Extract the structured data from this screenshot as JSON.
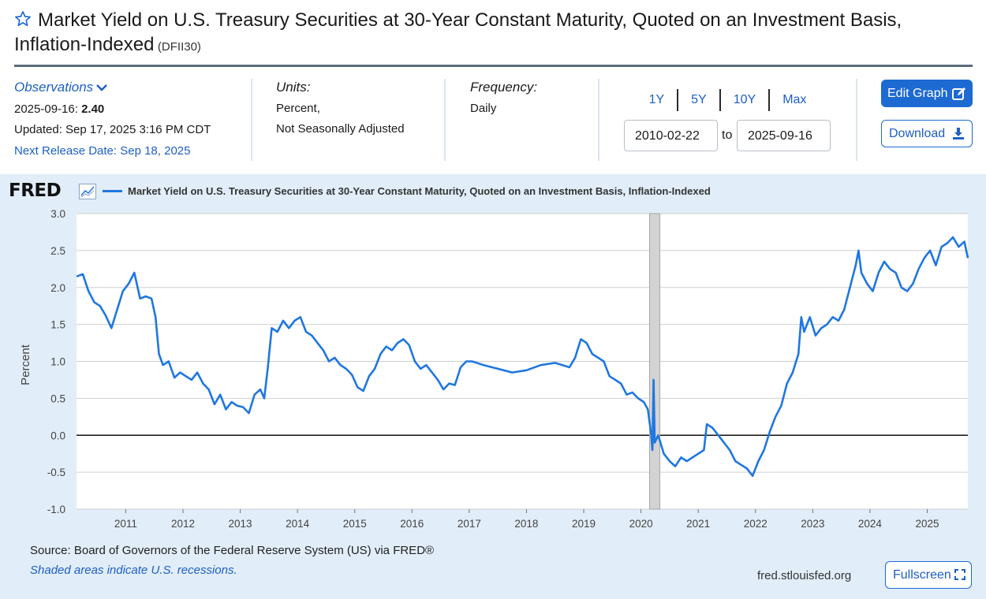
{
  "header": {
    "title": "Market Yield on U.S. Treasury Securities at 30-Year Constant Maturity, Quoted on an Investment Basis, Inflation-Indexed",
    "series_id": "(DFII30)"
  },
  "observations": {
    "label": "Observations",
    "date": "2025-09-16:",
    "value": "2.40",
    "updated": "Updated: Sep 17, 2025 3:16 PM CDT",
    "next_release": "Next Release Date: Sep 18, 2025"
  },
  "units": {
    "label": "Units:",
    "line1": "Percent,",
    "line2": "Not Seasonally Adjusted"
  },
  "frequency": {
    "label": "Frequency:",
    "value": "Daily"
  },
  "range": {
    "links": [
      "1Y",
      "5Y",
      "10Y",
      "Max"
    ],
    "start": "2010-02-22",
    "to": "to",
    "end": "2025-09-16"
  },
  "buttons": {
    "edit_graph": "Edit Graph",
    "download": "Download",
    "fullscreen": "Fullscreen"
  },
  "chart_panel": {
    "logo": "FRED",
    "source": "Source: Board of Governors of the Federal Reserve System (US) via FRED®",
    "shaded_note": "Shaded areas indicate U.S. recessions.",
    "url": "fred.stlouisfed.org"
  },
  "colors": {
    "series": "#1f77e0",
    "accent": "#1d6ad2",
    "panel": "#e1edf8",
    "recession": "#d3d3d3"
  },
  "icons": {
    "star": "star-icon",
    "chevron": "chevron-down-icon",
    "edit": "edit-icon",
    "download": "download-icon",
    "fullscreen": "fullscreen-icon"
  },
  "chart_data": {
    "type": "line",
    "title": "",
    "ylabel": "Percent",
    "xlabel": "",
    "ylim": [
      -1.0,
      3.0
    ],
    "xlim": [
      2010.14,
      2025.71
    ],
    "yticks": [
      "3.0",
      "2.5",
      "2.0",
      "1.5",
      "1.0",
      "0.5",
      "0.0",
      "-0.5",
      "-1.0"
    ],
    "xticks": [
      "2011",
      "2012",
      "2013",
      "2014",
      "2015",
      "2016",
      "2017",
      "2018",
      "2019",
      "2020",
      "2021",
      "2022",
      "2023",
      "2024",
      "2025"
    ],
    "grid": true,
    "recessions": [
      [
        2020.15,
        2020.33
      ]
    ],
    "series": [
      {
        "name": "Market Yield on U.S. Treasury Securities at 30-Year Constant Maturity, Quoted on an Investment Basis, Inflation-Indexed",
        "x": [
          2010.14,
          2010.25,
          2010.35,
          2010.45,
          2010.55,
          2010.65,
          2010.75,
          2010.85,
          2010.95,
          2011.05,
          2011.15,
          2011.25,
          2011.35,
          2011.45,
          2011.52,
          2011.58,
          2011.65,
          2011.75,
          2011.85,
          2011.95,
          2012.05,
          2012.15,
          2012.25,
          2012.35,
          2012.45,
          2012.55,
          2012.65,
          2012.75,
          2012.85,
          2012.95,
          2013.05,
          2013.15,
          2013.25,
          2013.35,
          2013.42,
          2013.48,
          2013.55,
          2013.65,
          2013.75,
          2013.85,
          2013.95,
          2014.05,
          2014.15,
          2014.25,
          2014.35,
          2014.45,
          2014.55,
          2014.65,
          2014.75,
          2014.85,
          2014.95,
          2015.05,
          2015.15,
          2015.25,
          2015.35,
          2015.45,
          2015.55,
          2015.65,
          2015.75,
          2015.85,
          2015.95,
          2016.05,
          2016.15,
          2016.25,
          2016.35,
          2016.45,
          2016.55,
          2016.65,
          2016.75,
          2016.85,
          2016.95,
          2017.05,
          2017.25,
          2017.5,
          2017.75,
          2018.0,
          2018.25,
          2018.5,
          2018.75,
          2018.85,
          2018.95,
          2019.05,
          2019.15,
          2019.25,
          2019.35,
          2019.45,
          2019.55,
          2019.65,
          2019.75,
          2019.85,
          2019.95,
          2020.05,
          2020.12,
          2020.18,
          2020.2,
          2020.22,
          2020.24,
          2020.3,
          2020.4,
          2020.5,
          2020.6,
          2020.7,
          2020.8,
          2020.9,
          2021.0,
          2021.1,
          2021.15,
          2021.25,
          2021.35,
          2021.45,
          2021.55,
          2021.65,
          2021.75,
          2021.85,
          2021.95,
          2022.05,
          2022.15,
          2022.25,
          2022.35,
          2022.45,
          2022.55,
          2022.65,
          2022.75,
          2022.8,
          2022.85,
          2022.95,
          2023.05,
          2023.15,
          2023.25,
          2023.35,
          2023.45,
          2023.55,
          2023.65,
          2023.75,
          2023.8,
          2023.85,
          2023.95,
          2024.05,
          2024.15,
          2024.25,
          2024.35,
          2024.45,
          2024.55,
          2024.65,
          2024.75,
          2024.85,
          2024.95,
          2025.05,
          2025.15,
          2025.25,
          2025.35,
          2025.45,
          2025.55,
          2025.65,
          2025.71
        ],
        "values": [
          2.15,
          2.18,
          1.95,
          1.8,
          1.75,
          1.62,
          1.45,
          1.7,
          1.95,
          2.05,
          2.2,
          1.85,
          1.88,
          1.85,
          1.6,
          1.1,
          0.95,
          1.0,
          0.78,
          0.85,
          0.8,
          0.75,
          0.85,
          0.7,
          0.62,
          0.42,
          0.55,
          0.35,
          0.45,
          0.4,
          0.38,
          0.3,
          0.55,
          0.62,
          0.5,
          0.9,
          1.45,
          1.4,
          1.55,
          1.45,
          1.55,
          1.6,
          1.4,
          1.35,
          1.25,
          1.15,
          1.0,
          1.05,
          0.95,
          0.9,
          0.82,
          0.65,
          0.6,
          0.8,
          0.9,
          1.1,
          1.2,
          1.15,
          1.25,
          1.3,
          1.22,
          1.0,
          0.9,
          0.95,
          0.85,
          0.75,
          0.62,
          0.7,
          0.68,
          0.92,
          1.0,
          1.0,
          0.95,
          0.9,
          0.85,
          0.88,
          0.95,
          0.98,
          0.92,
          1.05,
          1.3,
          1.25,
          1.1,
          1.05,
          1.0,
          0.8,
          0.75,
          0.7,
          0.55,
          0.58,
          0.5,
          0.45,
          0.35,
          0.0,
          -0.2,
          0.75,
          -0.1,
          0.0,
          -0.25,
          -0.35,
          -0.42,
          -0.3,
          -0.35,
          -0.3,
          -0.25,
          -0.2,
          0.15,
          0.1,
          0.0,
          -0.1,
          -0.2,
          -0.35,
          -0.4,
          -0.45,
          -0.55,
          -0.35,
          -0.2,
          0.05,
          0.25,
          0.4,
          0.7,
          0.85,
          1.1,
          1.6,
          1.4,
          1.6,
          1.35,
          1.45,
          1.5,
          1.6,
          1.55,
          1.7,
          2.0,
          2.3,
          2.5,
          2.2,
          2.05,
          1.95,
          2.2,
          2.35,
          2.25,
          2.2,
          2.0,
          1.95,
          2.05,
          2.25,
          2.4,
          2.5,
          2.3,
          2.55,
          2.6,
          2.68,
          2.55,
          2.62,
          2.4
        ]
      }
    ]
  }
}
